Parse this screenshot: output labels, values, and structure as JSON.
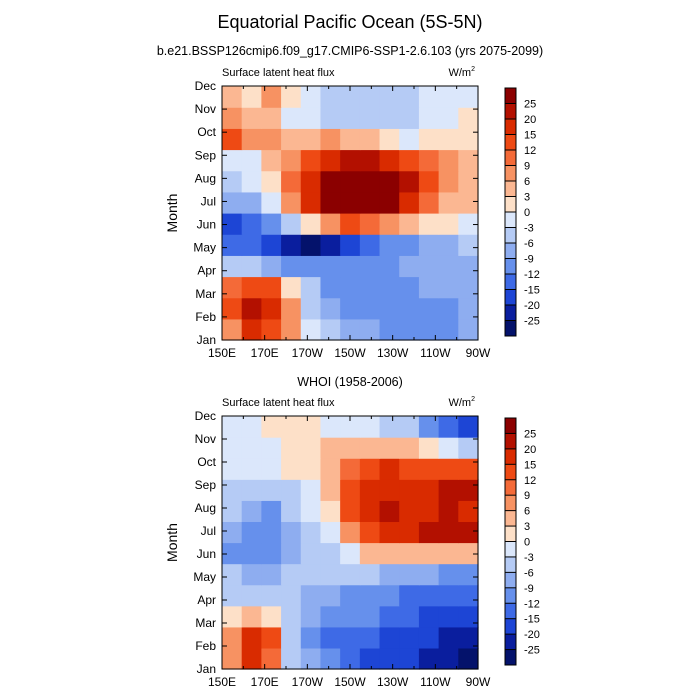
{
  "title": "Equatorial Pacific Ocean (5S-5N)",
  "subtitle": "b.e21.BSSP126cmip6.f09_g17.CMIP6-SSP1-2.6.103 (yrs 2075-2099)",
  "chart_data": [
    {
      "type": "heatmap",
      "panel_title": "",
      "left_label": "Surface latent heat flux",
      "units": "W/m",
      "units_superscript": "2",
      "ylabel": "Month",
      "xlabel": "",
      "x_ticks": [
        "150E",
        "170E",
        "170W",
        "150W",
        "130W",
        "110W",
        "90W"
      ],
      "y_ticks": [
        "Jan",
        "Feb",
        "Mar",
        "Apr",
        "May",
        "Jun",
        "Jul",
        "Aug",
        "Sep",
        "Oct",
        "Nov",
        "Dec"
      ],
      "colorbar_levels": [
        "25",
        "20",
        "15",
        "12",
        "9",
        "6",
        "3",
        "0",
        "-3",
        "-6",
        "-9",
        "-12",
        "-15",
        "-20",
        "-25"
      ],
      "colorbar_colors": [
        "#8b0000",
        "#b31000",
        "#d92b00",
        "#ee4a14",
        "#f46a38",
        "#f79262",
        "#fbb792",
        "#fde0c8",
        "#dbe7fb",
        "#b5cbf5",
        "#8eadf0",
        "#6690ec",
        "#3e6ae6",
        "#1d45d5",
        "#0a1e9e",
        "#04126b"
      ],
      "grid_x": [
        150,
        160,
        170,
        180,
        190,
        200,
        210,
        220,
        230,
        240,
        250,
        260,
        270
      ],
      "grid_y": [
        "Jan",
        "Feb",
        "Mar",
        "Apr",
        "May",
        "Jun",
        "Jul",
        "Aug",
        "Sep",
        "Oct",
        "Nov",
        "Dec"
      ],
      "values": [
        [
          7,
          16,
          14,
          8,
          -3,
          -6,
          -8,
          -9,
          -10,
          -12,
          -11,
          -10,
          -9
        ],
        [
          14,
          20,
          16,
          8,
          -5,
          -8,
          -10,
          -10,
          -11,
          -12,
          -11,
          -10,
          -9
        ],
        [
          10,
          14,
          12,
          2,
          -6,
          -10,
          -10,
          -10,
          -10,
          -10,
          -9,
          -8,
          -9
        ],
        [
          -5,
          -6,
          -8,
          -10,
          -12,
          -12,
          -12,
          -11,
          -10,
          -9,
          -8,
          -7,
          -8
        ],
        [
          -14,
          -15,
          -17,
          -22,
          -26,
          -24,
          -20,
          -15,
          -12,
          -10,
          -8,
          -7,
          -6
        ],
        [
          -16,
          -15,
          -11,
          -5,
          2,
          8,
          12,
          10,
          6,
          4,
          2,
          0,
          -1
        ],
        [
          -9,
          -7,
          -3,
          8,
          18,
          25,
          27,
          27,
          25,
          18,
          10,
          5,
          3
        ],
        [
          -4,
          -2,
          2,
          10,
          18,
          25,
          28,
          28,
          26,
          20,
          12,
          8,
          5
        ],
        [
          -3,
          -1,
          3,
          8,
          14,
          18,
          20,
          20,
          18,
          14,
          9,
          6,
          4
        ],
        [
          12,
          8,
          6,
          4,
          5,
          6,
          5,
          3,
          0,
          -1,
          1,
          2,
          2
        ],
        [
          7,
          5,
          3,
          -2,
          -3,
          -4,
          -4,
          -5,
          -6,
          -6,
          -3,
          -1,
          0
        ],
        [
          3,
          2,
          6,
          2,
          -2,
          -4,
          -4,
          -5,
          -6,
          -5,
          -3,
          -2,
          -1
        ]
      ]
    },
    {
      "type": "heatmap",
      "panel_title": "WHOI (1958-2006)",
      "left_label": "Surface latent heat flux",
      "units": "W/m",
      "units_superscript": "2",
      "ylabel": "Month",
      "xlabel": "",
      "x_ticks": [
        "150E",
        "170E",
        "170W",
        "150W",
        "130W",
        "110W",
        "90W"
      ],
      "y_ticks": [
        "Jan",
        "Feb",
        "Mar",
        "Apr",
        "May",
        "Jun",
        "Jul",
        "Aug",
        "Sep",
        "Oct",
        "Nov",
        "Dec"
      ],
      "colorbar_levels": [
        "25",
        "20",
        "15",
        "12",
        "9",
        "6",
        "3",
        "0",
        "-3",
        "-6",
        "-9",
        "-12",
        "-15",
        "-20",
        "-25"
      ],
      "colorbar_colors": [
        "#8b0000",
        "#b31000",
        "#d92b00",
        "#ee4a14",
        "#f46a38",
        "#f79262",
        "#fbb792",
        "#fde0c8",
        "#dbe7fb",
        "#b5cbf5",
        "#8eadf0",
        "#6690ec",
        "#3e6ae6",
        "#1d45d5",
        "#0a1e9e",
        "#04126b"
      ],
      "grid_x": [
        150,
        160,
        170,
        180,
        190,
        200,
        210,
        220,
        230,
        240,
        250,
        260,
        270
      ],
      "grid_y": [
        "Jan",
        "Feb",
        "Mar",
        "Apr",
        "May",
        "Jun",
        "Jul",
        "Aug",
        "Sep",
        "Oct",
        "Nov",
        "Dec"
      ],
      "values": [
        [
          6,
          16,
          10,
          -4,
          -8,
          -12,
          -15,
          -16,
          -18,
          -20,
          -22,
          -24,
          -26
        ],
        [
          8,
          16,
          12,
          -6,
          -10,
          -14,
          -15,
          -15,
          -16,
          -18,
          -20,
          -22,
          -22
        ],
        [
          0,
          4,
          2,
          -6,
          -9,
          -10,
          -12,
          -12,
          -14,
          -15,
          -16,
          -16,
          -18
        ],
        [
          -4,
          -5,
          -5,
          -6,
          -7,
          -8,
          -10,
          -11,
          -12,
          -13,
          -14,
          -14,
          -15
        ],
        [
          -6,
          -8,
          -7,
          -6,
          -4,
          -4,
          -4,
          -6,
          -7,
          -8,
          -9,
          -10,
          -10
        ],
        [
          -10,
          -12,
          -10,
          -8,
          -6,
          -4,
          -2,
          3,
          4,
          5,
          5,
          4,
          3
        ],
        [
          -8,
          -10,
          -12,
          -8,
          -5,
          -2,
          8,
          12,
          16,
          18,
          20,
          22,
          20
        ],
        [
          -6,
          -9,
          -10,
          -6,
          -3,
          0,
          12,
          16,
          20,
          18,
          18,
          20,
          18
        ],
        [
          -5,
          -6,
          -6,
          -4,
          -2,
          3,
          14,
          18,
          18,
          17,
          18,
          20,
          22
        ],
        [
          -2,
          -3,
          -2,
          0,
          2,
          4,
          10,
          14,
          15,
          14,
          13,
          14,
          12
        ],
        [
          -2,
          -3,
          -2,
          0,
          1,
          3,
          3,
          4,
          5,
          4,
          2,
          -2,
          -5
        ],
        [
          -3,
          -2,
          0,
          2,
          0,
          -1,
          -2,
          -3,
          -4,
          -6,
          -10,
          -15,
          -20
        ]
      ]
    }
  ]
}
